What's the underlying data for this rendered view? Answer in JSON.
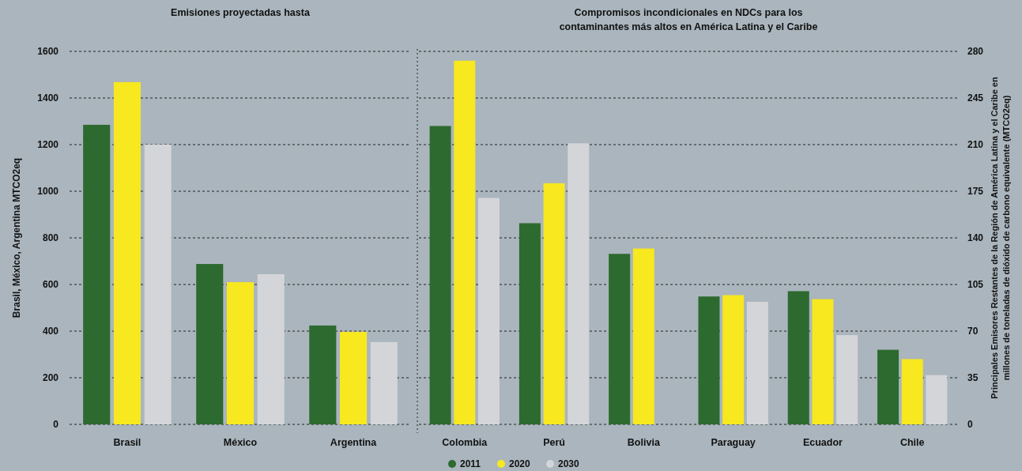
{
  "chart_data": [
    {
      "type": "bar",
      "title": "Emisiones proyectadas hasta",
      "ylabel": "Brasil, México, Argentina MTCO2eq",
      "categories": [
        "Brasil",
        "México",
        "Argentina"
      ],
      "ylim": [
        0,
        1600
      ],
      "yticks": [
        0,
        200,
        400,
        600,
        800,
        1000,
        1200,
        1400,
        1600
      ],
      "grid": "y",
      "series": [
        {
          "color": "#2d6a2f",
          "values": [
            1285,
            688,
            424
          ]
        },
        {
          "color": "#f7e81f",
          "values": [
            1468,
            610,
            397
          ]
        },
        {
          "color": "#d4d5d8",
          "values": [
            1200,
            644,
            353
          ]
        }
      ]
    },
    {
      "type": "bar",
      "title": "Compromisos incondicionales en NDCs para los\ncontaminantes más altos en América Latina y el Caribe",
      "y2label": "Principales Emisores Restantes de la Región de América Latina y el Caribe en\nmillones de toneladas de dióxido de carbono equivalente (MTCO2eq)",
      "categories": [
        "Colombia",
        "Perú",
        "Bolivia",
        "Paraguay",
        "Ecuador",
        "Chile"
      ],
      "y2lim": [
        0,
        280
      ],
      "y2ticks": [
        0,
        35,
        70,
        105,
        140,
        175,
        210,
        245,
        280
      ],
      "grid": "y",
      "legend": "bottom",
      "series": [
        {
          "name": "2011",
          "color": "#2d6a2f",
          "axis": "y2",
          "values": [
            224,
            151,
            128,
            96,
            100,
            56
          ]
        },
        {
          "name": "2020",
          "color": "#f7e81f",
          "axis": "y2",
          "values": [
            273,
            181,
            132,
            97,
            94,
            49
          ]
        },
        {
          "name": "2030",
          "color": "#d4d5d8",
          "axis": "y2",
          "values": [
            170,
            211,
            null,
            92,
            67,
            37
          ]
        }
      ]
    }
  ]
}
